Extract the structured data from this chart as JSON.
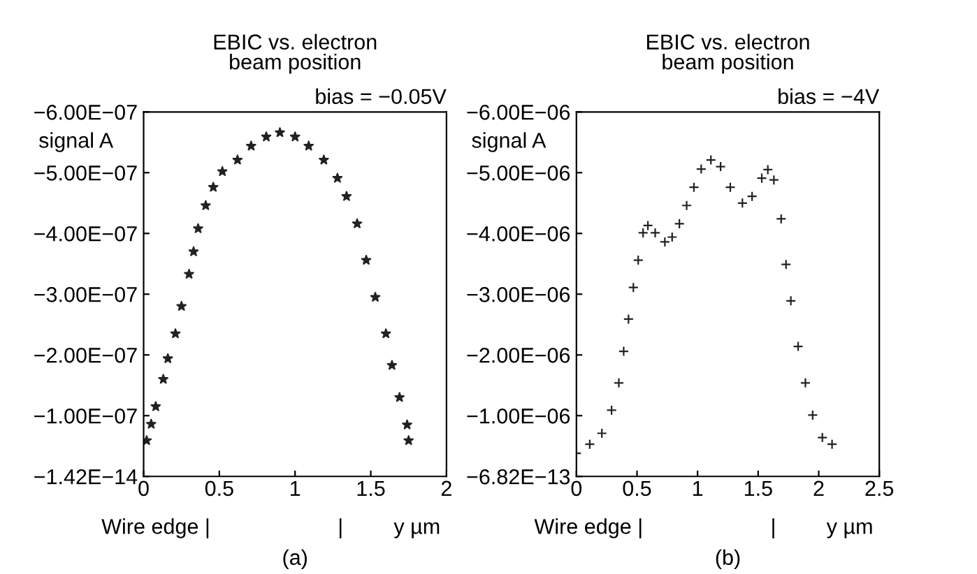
{
  "chart_data": [
    {
      "type": "scatter",
      "title": "EBIC vs. electron\nbeam position",
      "subtitle": "bias = −0.05V",
      "xlabel": "y µm",
      "ylabel": "signal A",
      "marker": "star",
      "grid": false,
      "legend": false,
      "annotations": [
        "Wire edge |",
        "|",
        "(a)"
      ],
      "xlim": [
        0,
        2
      ],
      "xticks": [
        0,
        0.5,
        1,
        1.5,
        2
      ],
      "ylim": [
        -1.42e-14,
        -6e-07
      ],
      "yticks": [
        {
          "value": -1.42e-14,
          "label": "−1.42E−14"
        },
        {
          "value": -1e-07,
          "label": "−1.00E−07"
        },
        {
          "value": -2e-07,
          "label": "−2.00E−07"
        },
        {
          "value": -3e-07,
          "label": "−3.00E−07"
        },
        {
          "value": -4e-07,
          "label": "−4.00E−07"
        },
        {
          "value": -5e-07,
          "label": "−5.00E−07"
        },
        {
          "value": -6e-07,
          "label": "−6.00E−07"
        }
      ],
      "series": [
        {
          "color": "#222222",
          "x": [
            0.02,
            0.05,
            0.08,
            0.13,
            0.16,
            0.21,
            0.25,
            0.3,
            0.33,
            0.36,
            0.41,
            0.46,
            0.52,
            0.62,
            0.71,
            0.81,
            0.9,
            1.0,
            1.09,
            1.19,
            1.28,
            1.34,
            1.41,
            1.47,
            1.53,
            1.6,
            1.64,
            1.69,
            1.74,
            1.75
          ],
          "values": [
            -5.9e-08,
            -8.6e-08,
            -1.15e-07,
            -1.6e-07,
            -1.94e-07,
            -2.35e-07,
            -2.8e-07,
            -3.33e-07,
            -3.7e-07,
            -4.08e-07,
            -4.46e-07,
            -4.76e-07,
            -5.02e-07,
            -5.21e-07,
            -5.44e-07,
            -5.59e-07,
            -5.66e-07,
            -5.59e-07,
            -5.44e-07,
            -5.21e-07,
            -4.91e-07,
            -4.61e-07,
            -4.16e-07,
            -3.56e-07,
            -2.95e-07,
            -2.35e-07,
            -1.83e-07,
            -1.3e-07,
            -8.5e-08,
            -5.9e-08
          ]
        }
      ]
    },
    {
      "type": "scatter",
      "title": "EBIC vs. electron\nbeam position",
      "subtitle": "bias = −4V",
      "xlabel": "y µm",
      "ylabel": "signal A",
      "marker": "cross",
      "grid": false,
      "legend": false,
      "annotations": [
        "Wire edge |",
        "|",
        "(b)"
      ],
      "xlim": [
        0,
        2.5
      ],
      "xticks": [
        0,
        0.5,
        1,
        1.5,
        2,
        2.5
      ],
      "ylim": [
        -6.82e-13,
        -6e-06
      ],
      "yticks": [
        {
          "value": -6.82e-13,
          "label": "−6.82E−13"
        },
        {
          "value": -1e-06,
          "label": "−1.00E−06"
        },
        {
          "value": -2e-06,
          "label": "−2.00E−06"
        },
        {
          "value": -3e-06,
          "label": "−3.00E−06"
        },
        {
          "value": -4e-06,
          "label": "−4.00E−06"
        },
        {
          "value": -5e-06,
          "label": "−5.00E−06"
        },
        {
          "value": -6e-06,
          "label": "−6.00E−06"
        }
      ],
      "series": [
        {
          "color": "#222222",
          "x": [
            0.0,
            0.11,
            0.21,
            0.29,
            0.35,
            0.39,
            0.43,
            0.47,
            0.51,
            0.55,
            0.59,
            0.65,
            0.73,
            0.79,
            0.85,
            0.91,
            0.97,
            1.03,
            1.11,
            1.19,
            1.27,
            1.37,
            1.45,
            1.53,
            1.58,
            1.63,
            1.69,
            1.73,
            1.77,
            1.83,
            1.89,
            1.95,
            2.03,
            2.11
          ],
          "values": [
            -3.8e-07,
            -5.3e-07,
            -7.1e-07,
            -1.09e-06,
            -1.54e-06,
            -2.06e-06,
            -2.59e-06,
            -3.11e-06,
            -3.56e-06,
            -4.01e-06,
            -4.13e-06,
            -4.01e-06,
            -3.86e-06,
            -3.94e-06,
            -4.16e-06,
            -4.46e-06,
            -4.76e-06,
            -5.06e-06,
            -5.21e-06,
            -5.1e-06,
            -4.76e-06,
            -4.5e-06,
            -4.61e-06,
            -4.91e-06,
            -5.05e-06,
            -4.88e-06,
            -4.24e-06,
            -3.49e-06,
            -2.89e-06,
            -2.14e-06,
            -1.54e-06,
            -1.01e-06,
            -6.4e-07,
            -5.3e-07
          ]
        }
      ]
    }
  ]
}
